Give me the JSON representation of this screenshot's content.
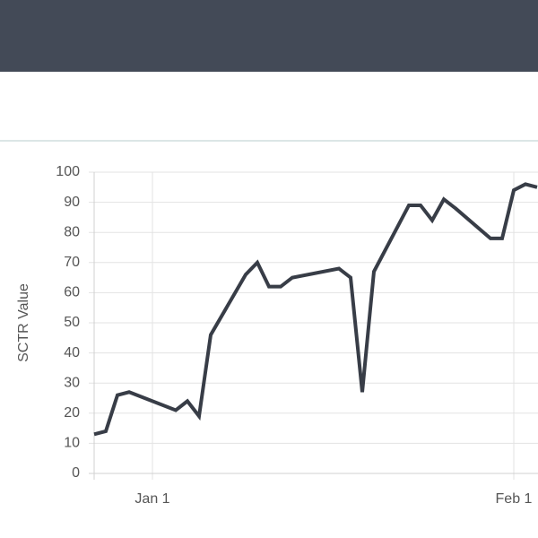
{
  "chart_data": {
    "type": "line",
    "y_label": "SCTR Value",
    "x": [
      "Dec 27",
      "Dec 28",
      "Dec 29",
      "Dec 30",
      "Jan 3",
      "Jan 4",
      "Jan 5",
      "Jan 6",
      "Jan 9",
      "Jan 10",
      "Jan 11",
      "Jan 12",
      "Jan 13",
      "Jan 17",
      "Jan 18",
      "Jan 19",
      "Jan 20",
      "Jan 23",
      "Jan 24",
      "Jan 25",
      "Jan 26",
      "Jan 27",
      "Jan 30",
      "Jan 31",
      "Feb 1",
      "Feb 2",
      "Feb 3"
    ],
    "series": [
      {
        "color": "#383d47",
        "values": [
          13,
          14,
          26,
          27,
          21,
          24,
          19,
          46,
          66,
          70,
          62,
          62,
          65,
          68,
          65,
          27,
          67,
          89,
          89,
          84,
          91,
          88,
          78,
          78,
          94,
          96,
          95
        ]
      }
    ],
    "xlim": [
      "Dec 27",
      "Feb 3"
    ],
    "xticks": [
      "Jan 1",
      "Feb 1"
    ],
    "ylim": [
      0,
      100
    ],
    "yticks": [
      0,
      10,
      20,
      30,
      40,
      50,
      60,
      70,
      80,
      90,
      100
    ],
    "grid": true
  }
}
